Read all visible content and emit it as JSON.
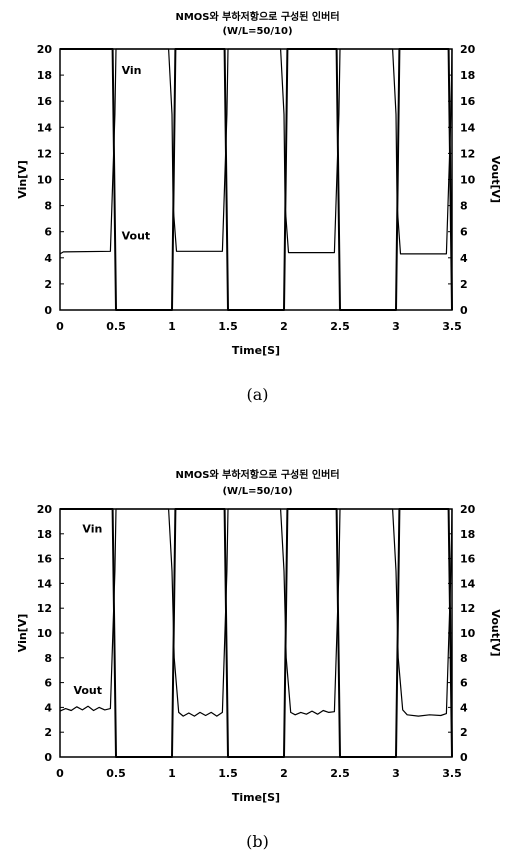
{
  "chart_data": [
    {
      "type": "line",
      "panel_label": "(a)",
      "title": "NMOS와 부하저항으로 구성된 인버터",
      "subtitle": "(W/L=50/10)",
      "xlabel": "Time[S]",
      "ylabel_left": "Vin[V]",
      "ylabel_right": "Vout[V]",
      "xlim": [
        0,
        3.5
      ],
      "ylim": [
        0,
        20
      ],
      "x_ticks": [
        "0",
        "0.5",
        "1",
        "1.5",
        "2",
        "2.5",
        "3",
        "3.5"
      ],
      "y_ticks": [
        "0",
        "2",
        "4",
        "6",
        "8",
        "10",
        "12",
        "14",
        "16",
        "18",
        "20"
      ],
      "annotations": [
        {
          "text": "Vin",
          "x": 0.55,
          "y": 18.1
        },
        {
          "text": "Vout",
          "x": 0.55,
          "y": 5.4
        }
      ],
      "series": [
        {
          "name": "Vin",
          "x": [
            0,
            0.47,
            0.5,
            1.0,
            1.03,
            1.47,
            1.5,
            2.0,
            2.03,
            2.47,
            2.5,
            3.0,
            3.03,
            3.47,
            3.5
          ],
          "y": [
            20,
            20,
            0,
            0,
            20,
            20,
            0,
            0,
            20,
            20,
            0,
            0,
            20,
            20,
            0
          ]
        },
        {
          "name": "Vout",
          "x": [
            0,
            0.03,
            0.45,
            0.49,
            0.5,
            0.97,
            1.0,
            1.01,
            1.04,
            1.45,
            1.49,
            1.5,
            1.97,
            2.0,
            2.01,
            2.04,
            2.45,
            2.49,
            2.5,
            2.97,
            3.0,
            3.01,
            3.04,
            3.45,
            3.49,
            3.5
          ],
          "y": [
            4.3,
            4.45,
            4.5,
            15,
            20,
            20,
            15,
            8,
            4.5,
            4.5,
            15,
            20,
            20,
            15,
            8,
            4.4,
            4.4,
            15,
            20,
            20,
            15,
            8,
            4.3,
            4.3,
            15,
            20
          ]
        }
      ]
    },
    {
      "type": "line",
      "panel_label": "(b)",
      "title": "NMOS와 부하저항으로 구성된 인버터",
      "subtitle": "(W/L=50/10)",
      "xlabel": "Time[S]",
      "ylabel_left": "Vin[V]",
      "ylabel_right": "Vout[V]",
      "xlim": [
        0,
        3.5
      ],
      "ylim": [
        0,
        20
      ],
      "x_ticks": [
        "0",
        "0.5",
        "1",
        "1.5",
        "2",
        "2.5",
        "3",
        "3.5"
      ],
      "y_ticks": [
        "0",
        "2",
        "4",
        "6",
        "8",
        "10",
        "12",
        "14",
        "16",
        "18",
        "20"
      ],
      "annotations": [
        {
          "text": "Vin",
          "x": 0.2,
          "y": 18.1
        },
        {
          "text": "Vout",
          "x": 0.12,
          "y": 5.1
        }
      ],
      "series": [
        {
          "name": "Vin",
          "x": [
            0,
            0.47,
            0.5,
            1.0,
            1.03,
            1.47,
            1.5,
            2.0,
            2.03,
            2.47,
            2.5,
            3.0,
            3.03,
            3.47,
            3.5
          ],
          "y": [
            20,
            20,
            0,
            0,
            20,
            20,
            0,
            0,
            20,
            20,
            0,
            0,
            20,
            20,
            0
          ]
        },
        {
          "name": "Vout",
          "x": [
            0,
            0.05,
            0.1,
            0.15,
            0.2,
            0.25,
            0.3,
            0.35,
            0.4,
            0.45,
            0.49,
            0.5,
            0.97,
            1.0,
            1.02,
            1.06,
            1.1,
            1.15,
            1.2,
            1.25,
            1.3,
            1.35,
            1.4,
            1.45,
            1.49,
            1.5,
            1.97,
            2.0,
            2.02,
            2.06,
            2.1,
            2.15,
            2.2,
            2.25,
            2.3,
            2.35,
            2.4,
            2.45,
            2.49,
            2.5,
            2.97,
            3.0,
            3.02,
            3.06,
            3.1,
            3.2,
            3.3,
            3.4,
            3.45,
            3.49,
            3.5
          ],
          "y": [
            3.7,
            3.9,
            3.75,
            4.05,
            3.8,
            4.1,
            3.75,
            4.0,
            3.8,
            3.9,
            15,
            20,
            20,
            15,
            8,
            3.6,
            3.3,
            3.55,
            3.3,
            3.6,
            3.35,
            3.6,
            3.3,
            3.6,
            15,
            20,
            20,
            15,
            8,
            3.6,
            3.4,
            3.6,
            3.45,
            3.7,
            3.45,
            3.75,
            3.6,
            3.65,
            15,
            20,
            20,
            15,
            8,
            3.8,
            3.4,
            3.3,
            3.4,
            3.35,
            3.5,
            15,
            20
          ]
        }
      ]
    }
  ]
}
